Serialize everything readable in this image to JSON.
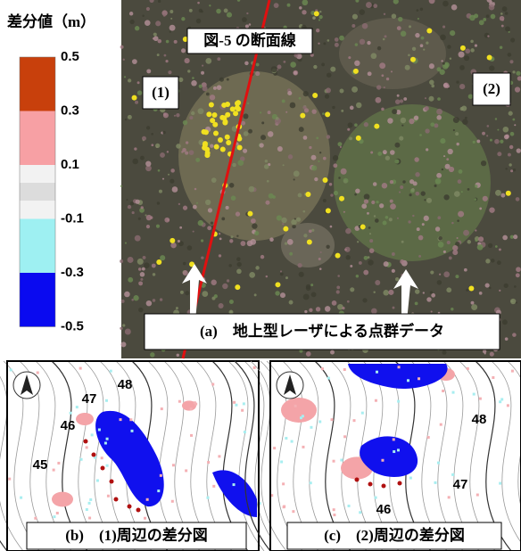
{
  "legend": {
    "title": "差分値（m）",
    "items": [
      {
        "label": "0.5",
        "color": "#c8400c"
      },
      {
        "label": "0.3",
        "color": "#f7a0a4"
      },
      {
        "label": "0.1",
        "color": "#f2f2f2"
      },
      {
        "label": "-0.1",
        "color": "#9ef0f2"
      },
      {
        "label": "-0.3",
        "color": "#0a0af0"
      },
      {
        "label": "-0.5"
      }
    ]
  },
  "photo": {
    "section_label": "図-5 の断面線",
    "marker_1": "(1)",
    "marker_2": "(2)",
    "caption": "(a)　地上型レーザによる点群データ"
  },
  "map_b": {
    "contours": [
      "48",
      "47",
      "46",
      "45"
    ],
    "caption": "(b)　(1)周辺の差分図"
  },
  "map_c": {
    "contours": [
      "48",
      "47",
      "46"
    ],
    "caption": "(c)　(2)周辺の差分図"
  }
}
